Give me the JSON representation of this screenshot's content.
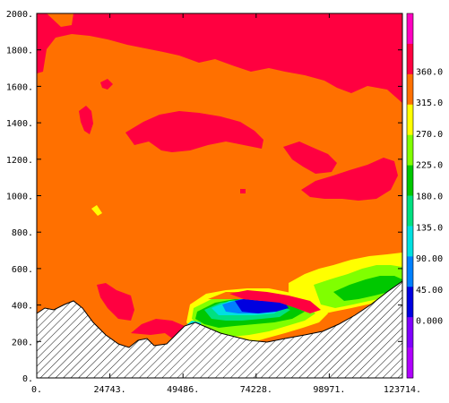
{
  "chart_data": {
    "type": "heatmap",
    "title": "",
    "xlabel": "",
    "ylabel": "",
    "xlim": [
      0,
      123714
    ],
    "ylim": [
      0,
      2000
    ],
    "x_ticks": [
      "0.",
      "24743.",
      "49486.",
      "74228.",
      "98971.",
      "123714."
    ],
    "y_ticks": [
      "0.",
      "200.",
      "400.",
      "600.",
      "800.",
      "1000.",
      "1200.",
      "1400.",
      "1600.",
      "1800.",
      "2000."
    ],
    "colorbar": {
      "labels": [
        "0.000",
        "45.00",
        "90.00",
        "135.0",
        "180.0",
        "225.0",
        "270.0",
        "315.0",
        "360.0"
      ],
      "colors": [
        "#b000ff",
        "#8000ff",
        "#0000e0",
        "#0080ff",
        "#00e0e0",
        "#00e080",
        "#00c800",
        "#80ff00",
        "#ffff00",
        "#ff7000",
        "#ff0040",
        "#ff00c0"
      ]
    },
    "fill_colors": {
      "background": "#ff7000",
      "high": "#ff0040",
      "yellow": "#ffff00",
      "lime": "#80ff00",
      "green": "#00c800",
      "teal": "#00e080",
      "cyan": "#00e0e0",
      "blue_light": "#0080ff",
      "blue_dark": "#0000e0",
      "terrain": "#ffffff"
    }
  }
}
